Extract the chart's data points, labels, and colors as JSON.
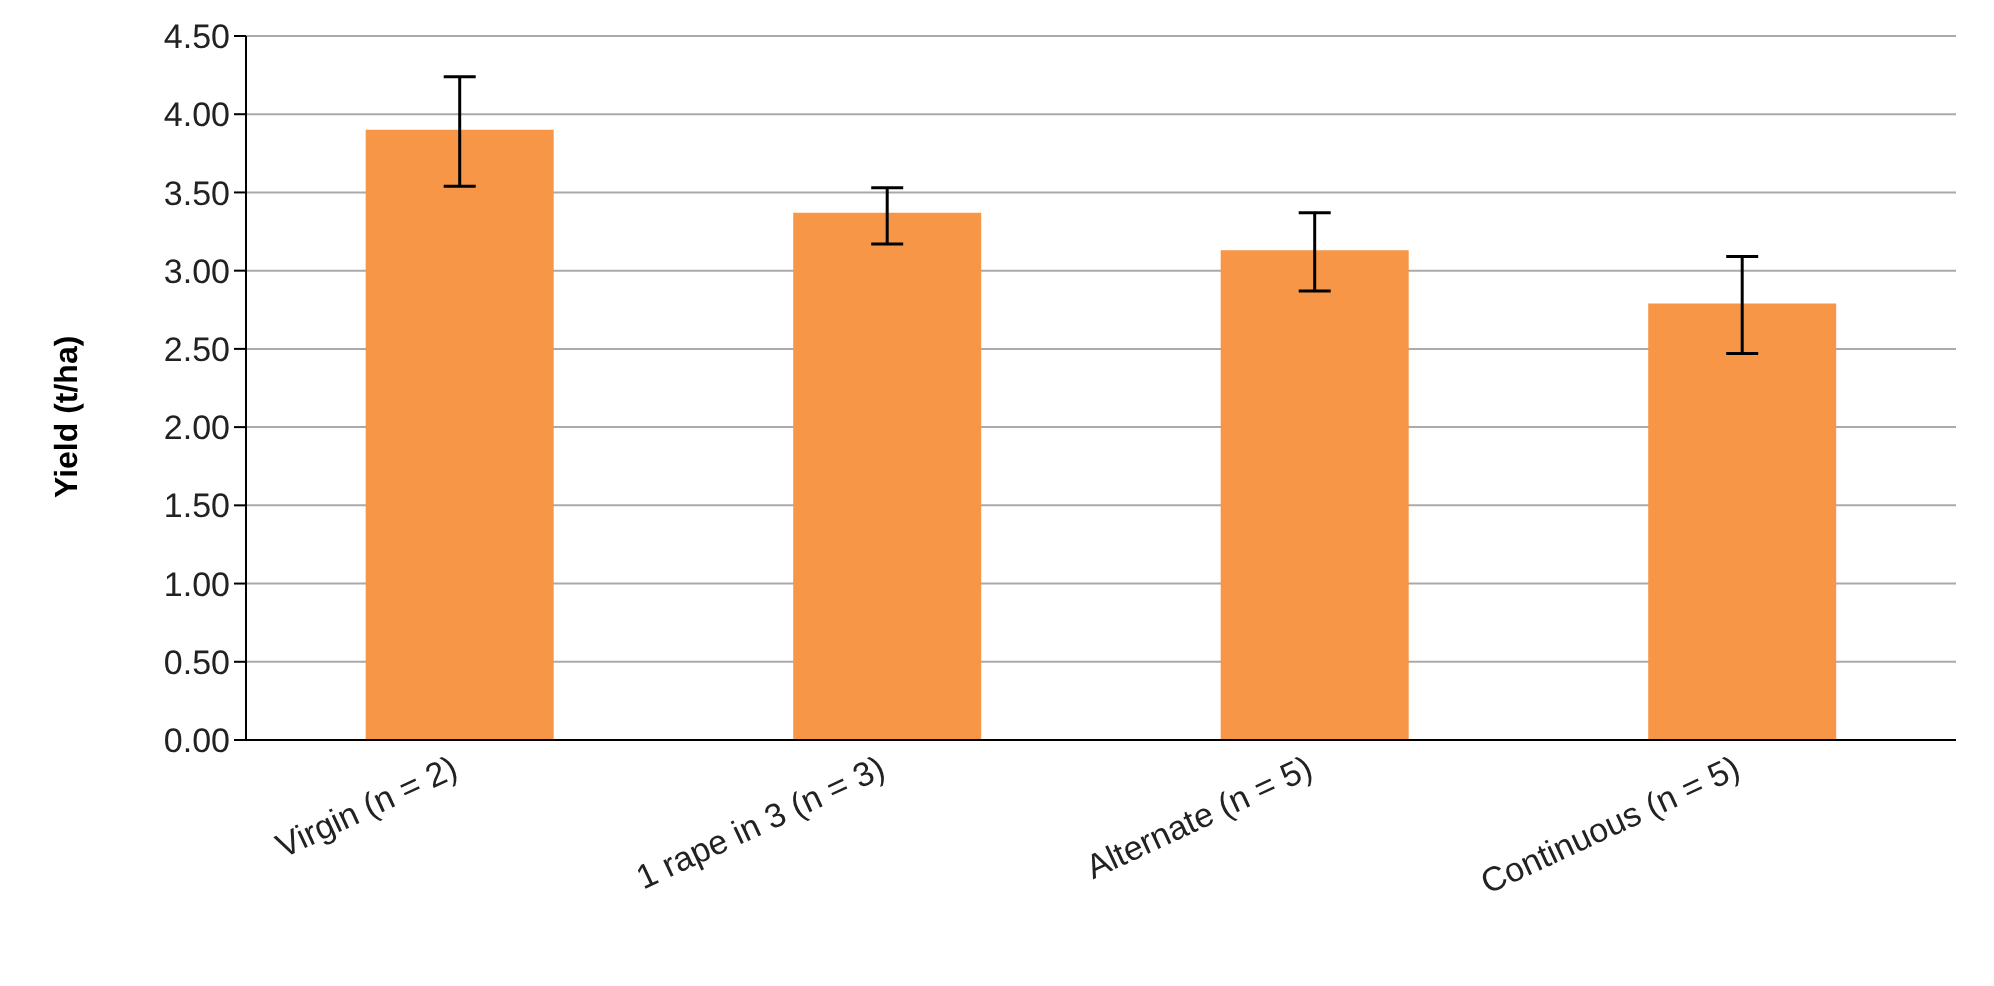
{
  "chart_data": {
    "type": "bar",
    "ylabel": "Yield (t/ha)",
    "categories": [
      "Virgin (n = 2)",
      "1 rape in 3 (n = 3)",
      "Alternate (n = 5)",
      "Continuous (n = 5)"
    ],
    "values": [
      3.9,
      3.37,
      3.13,
      2.79
    ],
    "errors": [
      [
        3.54,
        4.24
      ],
      [
        3.17,
        3.53
      ],
      [
        2.87,
        3.37
      ],
      [
        2.47,
        3.09
      ]
    ],
    "color": "#f79646",
    "ylim": [
      0,
      4.5
    ],
    "yticks": [
      {
        "value": 0,
        "label": "0.00"
      },
      {
        "value": 0.5,
        "label": "0.50"
      },
      {
        "value": 1,
        "label": "1.00"
      },
      {
        "value": 1.5,
        "label": "1.50"
      },
      {
        "value": 2,
        "label": "2.00"
      },
      {
        "value": 2.5,
        "label": "2.50"
      },
      {
        "value": 3,
        "label": "3.00"
      },
      {
        "value": 3.5,
        "label": "3.50"
      },
      {
        "value": 4,
        "label": "4.00"
      },
      {
        "value": 4.5,
        "label": "4.50"
      }
    ],
    "grid": "y"
  }
}
